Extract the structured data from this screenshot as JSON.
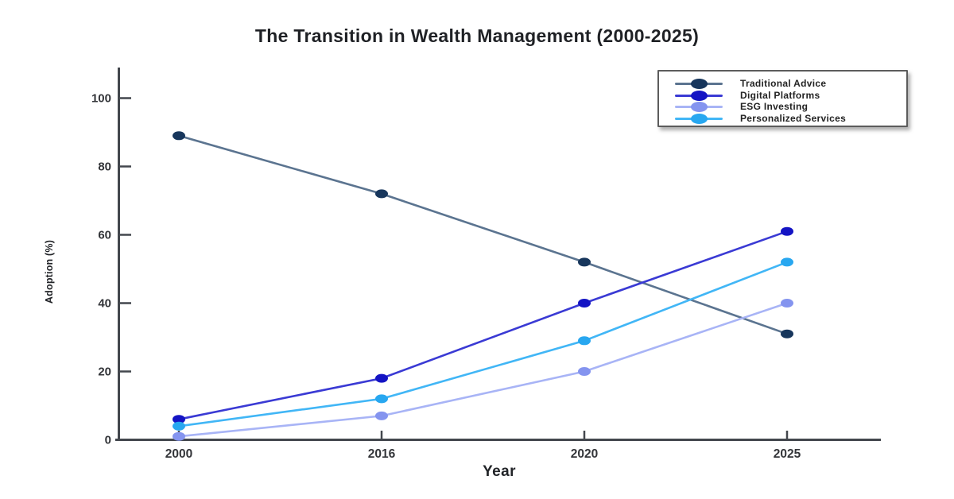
{
  "page": {
    "title": "The Transition in Wealth Management (2000-2025)"
  },
  "chart_data": {
    "type": "line",
    "title": "The Transition in Wealth Management (2000-2025)",
    "xlabel": "Year",
    "ylabel": "Adoption (%)",
    "categories": [
      "2000",
      "2016",
      "2020",
      "2025"
    ],
    "y_ticks": [
      0,
      20,
      40,
      60,
      80,
      100
    ],
    "ylim": [
      0,
      108
    ],
    "grid": false,
    "legend_position": "top-right",
    "marker_style": "ellipse",
    "series": [
      {
        "name": "Traditional Advice",
        "values": [
          89,
          72,
          52,
          31
        ],
        "line_color": "#5b7490",
        "marker_color": "#17365c"
      },
      {
        "name": "Digital Platforms",
        "values": [
          6,
          18,
          40,
          61
        ],
        "line_color": "#3a3ad4",
        "marker_color": "#1414c4"
      },
      {
        "name": "ESG Investing",
        "values": [
          1,
          7,
          20,
          40
        ],
        "line_color": "#a8b4f6",
        "marker_color": "#8494ef"
      },
      {
        "name": "Personalized Services",
        "values": [
          4,
          12,
          29,
          52
        ],
        "line_color": "#41b6f6",
        "marker_color": "#28a7f0"
      }
    ],
    "axis_color": "#43474d",
    "tick_label_color": "#333539"
  }
}
